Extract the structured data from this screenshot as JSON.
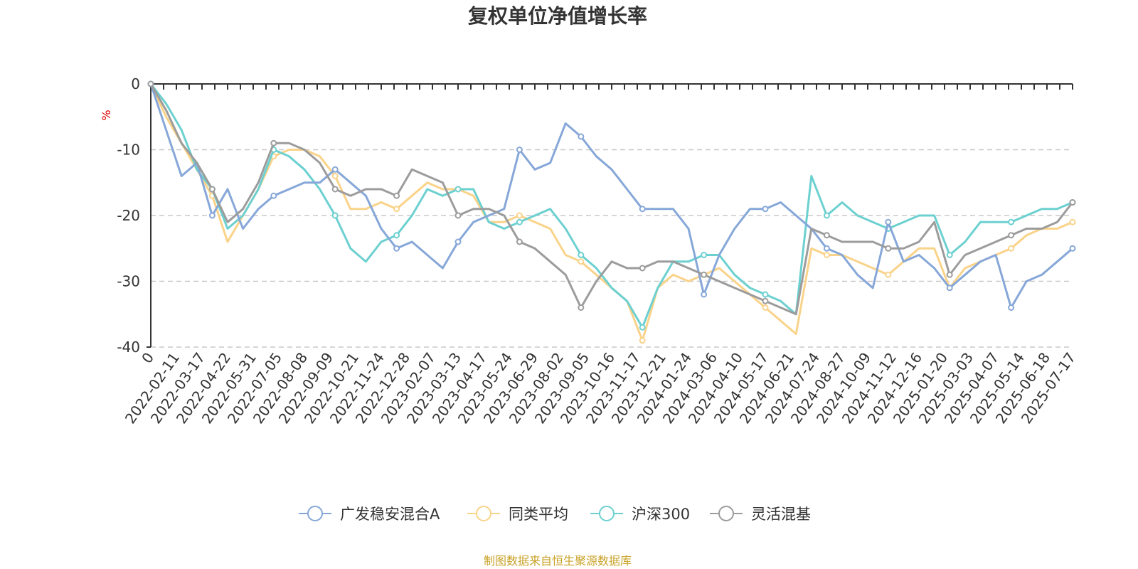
{
  "chart_data": {
    "type": "line",
    "title": "复权单位净值增长率",
    "ylabel": "%",
    "ylim": [
      -40,
      0
    ],
    "yticks": [
      0,
      -10,
      -20,
      -30,
      -40
    ],
    "grid": true,
    "legend_position": "bottom-center",
    "x_tick_labels": [
      "0",
      "2022-02-11",
      "2022-03-17",
      "2022-04-22",
      "2022-05-31",
      "2022-07-05",
      "2022-08-08",
      "2022-09-09",
      "2022-10-21",
      "2022-11-24",
      "2022-12-28",
      "2023-02-07",
      "2023-03-13",
      "2023-04-17",
      "2023-05-24",
      "2023-06-29",
      "2023-08-02",
      "2023-09-05",
      "2023-10-16",
      "2023-11-17",
      "2023-12-21",
      "2024-01-24",
      "2024-03-06",
      "2024-04-10",
      "2024-05-17",
      "2024-06-21",
      "2024-07-24",
      "2024-08-27",
      "2024-10-09",
      "2024-11-12",
      "2024-12-16",
      "2025-01-20",
      "2025-03-03",
      "2025-04-07",
      "2025-05-14",
      "2025-06-18",
      "2025-07-17"
    ],
    "series": [
      {
        "name": "广发稳安混合A",
        "color": "#86a7d8",
        "values": [
          0,
          -7,
          -14,
          -12,
          -20,
          -16,
          -22,
          -19,
          -17,
          -16,
          -15,
          -15,
          -13,
          -15,
          -17,
          -22,
          -25,
          -24,
          -26,
          -28,
          -24,
          -21,
          -20,
          -19,
          -10,
          -13,
          -12,
          -6,
          -8,
          -11,
          -13,
          -16,
          -19,
          -19,
          -19,
          -22,
          -32,
          -26,
          -22,
          -19,
          -19,
          -18,
          -20,
          -22,
          -25,
          -26,
          -29,
          -31,
          -21,
          -27,
          -26,
          -28,
          -31,
          -29,
          -27,
          -26,
          -34,
          -30,
          -29,
          -27,
          -25
        ]
      },
      {
        "name": "同类平均",
        "color": "#fad38a",
        "values": [
          0,
          -5,
          -9,
          -13,
          -17,
          -24,
          -20,
          -16,
          -11,
          -10,
          -10,
          -11,
          -14,
          -19,
          -19,
          -18,
          -19,
          -17,
          -15,
          -16,
          -16,
          -17,
          -21,
          -21,
          -20,
          -21,
          -22,
          -26,
          -27,
          -29,
          -31,
          -33,
          -39,
          -31,
          -29,
          -30,
          -29,
          -28,
          -30,
          -32,
          -34,
          -36,
          -38,
          -25,
          -26,
          -26,
          -27,
          -28,
          -29,
          -27,
          -25,
          -25,
          -31,
          -28,
          -27,
          -26,
          -25,
          -23,
          -22,
          -22,
          -21
        ]
      },
      {
        "name": "沪深300",
        "color": "#6dd0d0",
        "values": [
          0,
          -3,
          -7,
          -13,
          -16,
          -22,
          -20,
          -16,
          -10,
          -11,
          -13,
          -16,
          -20,
          -25,
          -27,
          -24,
          -23,
          -20,
          -16,
          -17,
          -16,
          -16,
          -21,
          -22,
          -21,
          -20,
          -19,
          -22,
          -26,
          -28,
          -31,
          -33,
          -37,
          -31,
          -27,
          -27,
          -26,
          -26,
          -29,
          -31,
          -32,
          -33,
          -35,
          -14,
          -20,
          -18,
          -20,
          -21,
          -22,
          -21,
          -20,
          -20,
          -26,
          -24,
          -21,
          -21,
          -21,
          -20,
          -19,
          -19,
          -18
        ]
      },
      {
        "name": "灵活混基",
        "color": "#9c9c9c",
        "values": [
          0,
          -4,
          -9,
          -12,
          -16,
          -21,
          -19,
          -15,
          -9,
          -9,
          -10,
          -12,
          -16,
          -17,
          -16,
          -16,
          -17,
          -13,
          -14,
          -15,
          -20,
          -19,
          -19,
          -20,
          -24,
          -25,
          -27,
          -29,
          -34,
          -30,
          -27,
          -28,
          -28,
          -27,
          -27,
          -28,
          -29,
          -30,
          -31,
          -32,
          -33,
          -34,
          -35,
          -22,
          -23,
          -24,
          -24,
          -24,
          -25,
          -25,
          -24,
          -21,
          -29,
          -26,
          -25,
          -24,
          -23,
          -22,
          -22,
          -21,
          -18
        ]
      }
    ]
  },
  "source": "制图数据来自恒生聚源数据库"
}
